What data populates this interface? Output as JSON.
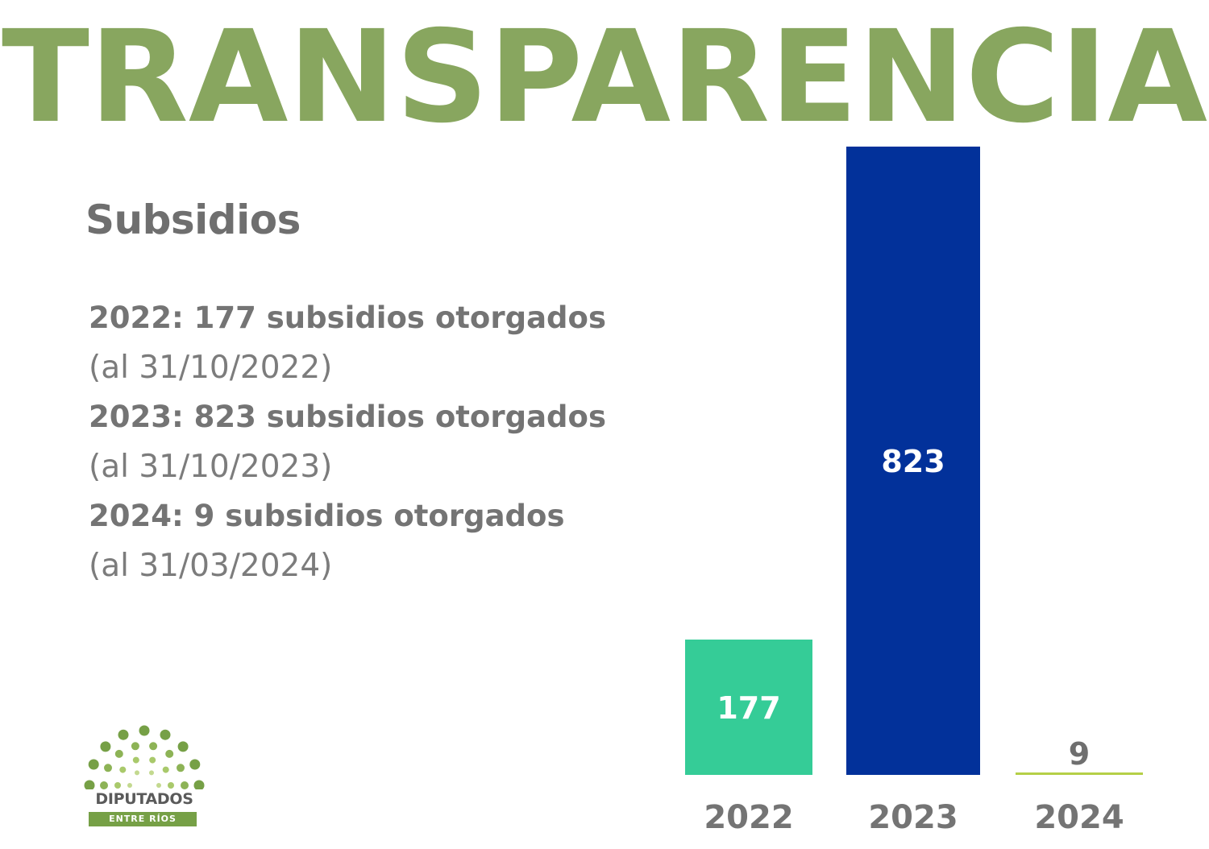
{
  "header": {
    "title": "TRANSPARENCIA"
  },
  "section": {
    "subtitle": "Subsidios"
  },
  "stats": [
    {
      "label": "2022: 177 subsidios otorgados",
      "note": "(al 31/10/2022)"
    },
    {
      "label": "2023: 823  subsidios otorgados",
      "note": "(al 31/10/2023)"
    },
    {
      "label": "2024: 9 subsidios otorgados",
      "note": "(al 31/03/2024)"
    }
  ],
  "logo": {
    "name": "DIPUTADOS",
    "region": "ENTRE RÍOS",
    "icon": "semicircle-dots-icon"
  },
  "colors": {
    "title": "#88a65f",
    "text": "#747474",
    "bar_2022": "#35cc97",
    "bar_2023": "#02319a",
    "bar_2024": "#b5cf47",
    "logo_green": "#76a046"
  },
  "chart_data": {
    "type": "bar",
    "categories": [
      "2022",
      "2023",
      "2024"
    ],
    "values": [
      177,
      823,
      9
    ],
    "data_labels": [
      "177",
      "823",
      "9"
    ],
    "colors": [
      "#35cc97",
      "#02319a",
      "#b5cf47"
    ],
    "title": "",
    "xlabel": "",
    "ylabel": "",
    "ylim": [
      0,
      823
    ],
    "grid": false,
    "legend": "none"
  }
}
